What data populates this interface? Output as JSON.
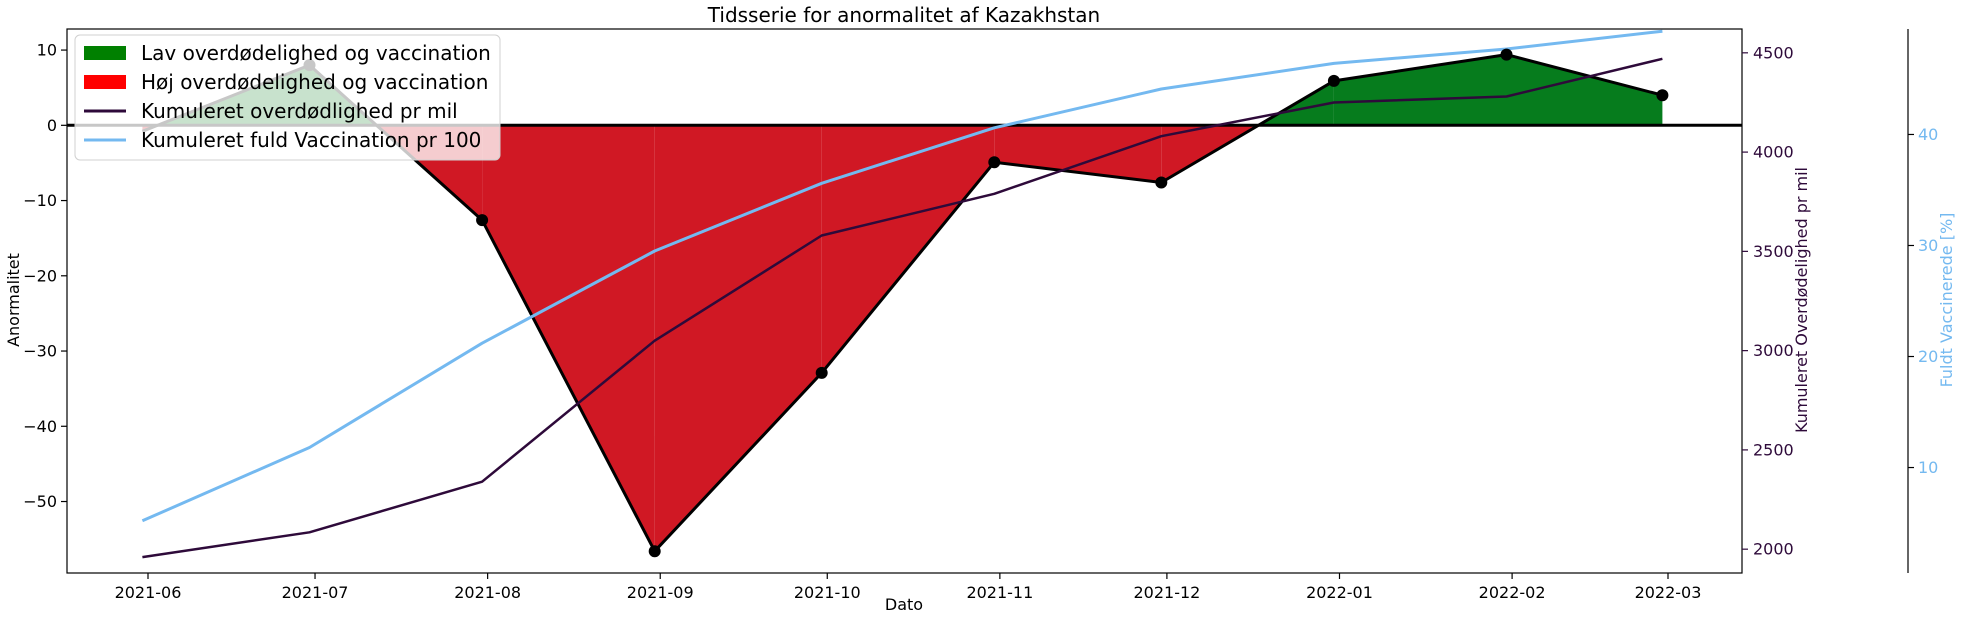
{
  "chart_data": {
    "type": "area",
    "title": "Tidsserie for anormalitet af Kazakhstan",
    "xlabel": "Dato",
    "ylabel": "Anormalitet",
    "y2label": "Kumuleret Overdødelighed pr mil",
    "y3label": "Fuldt Vaccinerede [%]",
    "x_ticks": [
      "2021-06",
      "2021-07",
      "2021-08",
      "2021-09",
      "2021-10",
      "2021-11",
      "2021-12",
      "2022-01",
      "2022-02",
      "2022-03"
    ],
    "y_ticks": [
      10,
      0,
      -10,
      -20,
      -30,
      -40,
      -50
    ],
    "y2_ticks": [
      4500,
      4000,
      3500,
      3000,
      2500,
      2000
    ],
    "y3_ticks": [
      40,
      30,
      20,
      10
    ],
    "ylim": [
      -59.5,
      12.8
    ],
    "y2lim": [
      1880,
      4620
    ],
    "y3lim": [
      0.5,
      49.5
    ],
    "x": [
      "2021-05-31",
      "2021-06-30",
      "2021-07-31",
      "2021-08-31",
      "2021-09-30",
      "2021-10-31",
      "2021-11-30",
      "2021-12-31",
      "2022-01-31",
      "2022-02-28"
    ],
    "anomaly": [
      -0.8,
      8.0,
      -12.6,
      -56.6,
      -32.9,
      -4.9,
      -7.6,
      5.9,
      9.4,
      4.0
    ],
    "excess_mortality_per_million": [
      1960,
      2085,
      2340,
      3050,
      3580,
      3790,
      4080,
      4250,
      4280,
      4470
    ],
    "fully_vaccinated_pct": [
      5.2,
      11.8,
      21.2,
      29.5,
      35.6,
      40.6,
      44.1,
      46.4,
      47.7,
      49.3
    ],
    "legend": {
      "position": "top-left",
      "entries": [
        {
          "label": "Lav overdødelighed og vaccination",
          "color": "#008000",
          "kind": "patch"
        },
        {
          "label": "Høj overdødelighed og vaccination",
          "color": "#ff0000",
          "kind": "patch"
        },
        {
          "label": "Kumuleret overdødlighed pr mil",
          "color": "#2e0a3a",
          "kind": "line"
        },
        {
          "label": "Kumuleret fuld Vaccination pr 100",
          "color": "#74b9f0",
          "kind": "line"
        }
      ]
    },
    "colors": {
      "positive_fill": "#067c1d",
      "negative_fill": "#d01824",
      "anomaly_line": "#000000",
      "mortality_line": "#2e0a3a",
      "vaccination_line": "#74b9f0"
    },
    "grid": false
  }
}
